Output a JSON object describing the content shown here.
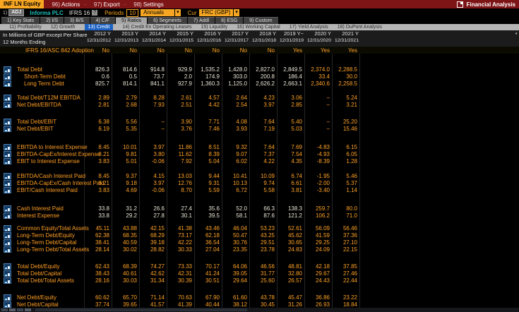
{
  "titlebar": {
    "security": "INF LN Equity",
    "menus": [
      {
        "num": "96)",
        "label": "Actions"
      },
      {
        "num": "97)",
        "label": "Export"
      },
      {
        "num": "98)",
        "label": "Settings"
      }
    ],
    "app_title": "Financial Analysis"
  },
  "toolbar": {
    "adj_num": "1)",
    "adj_label": "ADJ",
    "company": "Informa PLC",
    "standard": "IFRS 16",
    "help_badge": "?",
    "periods_label": "Periods",
    "periods_value": "10",
    "periods_type": "Annuals",
    "cur_label": "Cur",
    "cur_value": "FRC (GBP)",
    "dropdown_caret": "▾"
  },
  "tabs": [
    {
      "num": "1)",
      "label": "Key Stats",
      "active": false
    },
    {
      "num": "2)",
      "label": "I/S",
      "active": false
    },
    {
      "num": "3)",
      "label": "B/S",
      "active": false
    },
    {
      "num": "4)",
      "label": "C/F",
      "active": false
    },
    {
      "num": "5)",
      "label": "Ratios",
      "active": true
    },
    {
      "num": "6)",
      "label": "Segments",
      "active": false
    },
    {
      "num": "7)",
      "label": "Addl",
      "active": false
    },
    {
      "num": "8)",
      "label": "ESG",
      "active": false
    },
    {
      "num": "9)",
      "label": "Custom",
      "active": false
    }
  ],
  "subtabs": [
    {
      "num": "11)",
      "label": "Profitability",
      "active": false
    },
    {
      "num": "12)",
      "label": "Growth",
      "active": false
    },
    {
      "num": "13)",
      "label": "Credit",
      "active": true
    },
    {
      "num": "14)",
      "label": "Credit Ex Operating Leases",
      "active": false
    },
    {
      "num": "15)",
      "label": "Liquidity",
      "active": false
    },
    {
      "num": "16)",
      "label": "Working Capital",
      "active": false
    },
    {
      "num": "17)",
      "label": "Yield Analysis",
      "active": false
    },
    {
      "num": "18)",
      "label": "DuPont Analysis",
      "active": false
    }
  ],
  "table": {
    "unit_note": "In Millions of GBP except Per Share",
    "period_note": "12 Months Ending",
    "columns": [
      {
        "year": "2012 Y",
        "date": "12/31/2012"
      },
      {
        "year": "2013 Y",
        "date": "12/31/2013"
      },
      {
        "year": "2014 Y",
        "date": "12/31/2014"
      },
      {
        "year": "2015 Y",
        "date": "12/31/2015"
      },
      {
        "year": "2016 Y",
        "date": "12/31/2016"
      },
      {
        "year": "2017 Y",
        "date": "12/31/2017"
      },
      {
        "year": "2018 Y",
        "date": "12/31/2018"
      },
      {
        "year": "2019 Y~",
        "date": "12/31/2019"
      },
      {
        "year": "2020 Y",
        "date": "12/31/2020"
      },
      {
        "year": "2021 Y",
        "date": "12/31/2021"
      }
    ],
    "adoption_row": {
      "label": "IFRS 16/ASC 842 Adoption",
      "values": [
        "No",
        "No",
        "No",
        "No",
        "No",
        "No",
        "No",
        "Yes",
        "Yes",
        "Yes"
      ]
    },
    "sections": [
      {
        "rows": [
          {
            "label": "Total Debt",
            "indent": 0,
            "tone": "white",
            "amber_from": 8,
            "values": [
              "826.3",
              "814.6",
              "914.8",
              "929.9",
              "1,535.2",
              "1,428.0",
              "2,827.0",
              "2,849.5",
              "2,374.0",
              "2,288.5"
            ]
          },
          {
            "label": "Short-Term Debt",
            "indent": 1,
            "tone": "white",
            "amber_from": 8,
            "values": [
              "0.6",
              "0.5",
              "73.7",
              "2.0",
              "174.9",
              "303.0",
              "200.8",
              "186.4",
              "33.4",
              "30.0"
            ]
          },
          {
            "label": "Long Term Debt",
            "indent": 1,
            "tone": "white",
            "amber_from": 8,
            "values": [
              "825.7",
              "814.1",
              "841.1",
              "927.9",
              "1,360.3",
              "1,125.0",
              "2,626.2",
              "2,663.1",
              "2,340.6",
              "2,258.5"
            ]
          }
        ]
      },
      {
        "rows": [
          {
            "label": "Total Debt/T12M EBITDA",
            "indent": 0,
            "tone": "amber",
            "amber_from": 0,
            "values": [
              "2.89",
              "2.79",
              "8.28",
              "2.61",
              "4.57",
              "2.64",
              "4.23",
              "3.06",
              "–",
              "5.24"
            ]
          },
          {
            "label": "Net Debt/EBITDA",
            "indent": 0,
            "tone": "amber",
            "amber_from": 0,
            "values": [
              "2.81",
              "2.68",
              "7.93",
              "2.51",
              "4.42",
              "2.54",
              "3.97",
              "2.85",
              "–",
              "3.21"
            ]
          }
        ]
      },
      {
        "rows": [
          {
            "label": "Total Debt/EBIT",
            "indent": 0,
            "tone": "amber",
            "amber_from": 0,
            "values": [
              "6.38",
              "5.56",
              "–",
              "3.90",
              "7.71",
              "4.08",
              "7.64",
              "5.40",
              "–",
              "25.20"
            ]
          },
          {
            "label": "Net Debt/EBIT",
            "indent": 0,
            "tone": "amber",
            "amber_from": 0,
            "values": [
              "6.19",
              "5.35",
              "–",
              "3.76",
              "7.46",
              "3.93",
              "7.19",
              "5.03",
              "–",
              "15.46"
            ]
          }
        ]
      },
      {
        "rows": [
          {
            "label": "EBITDA to Interest Expense",
            "indent": 0,
            "tone": "amber",
            "amber_from": 0,
            "values": [
              "8.45",
              "10.01",
              "3.97",
              "11.86",
              "8.51",
              "9.32",
              "7.64",
              "7.69",
              "-4.83",
              "6.15"
            ]
          },
          {
            "label": "EBITDA-CapEx/Interest Expense",
            "indent": 0,
            "tone": "amber",
            "amber_from": 0,
            "values": [
              "8.21",
              "9.81",
              "3.80",
              "11.62",
              "8.39",
              "9.07",
              "7.37",
              "7.54",
              "-4.93",
              "6.05"
            ]
          },
          {
            "label": "EBIT to Interest Expense",
            "indent": 0,
            "tone": "amber",
            "amber_from": 0,
            "values": [
              "3.83",
              "5.01",
              "-0.06",
              "7.92",
              "5.04",
              "6.02",
              "4.22",
              "4.35",
              "-8.39",
              "1.28"
            ]
          }
        ]
      },
      {
        "rows": [
          {
            "label": "EBITDA/Cash Interest Paid",
            "indent": 0,
            "tone": "amber",
            "amber_from": 0,
            "values": [
              "8.45",
              "9.37",
              "4.15",
              "13.03",
              "9.44",
              "10.41",
              "10.09",
              "6.74",
              "-1.95",
              "5.46"
            ]
          },
          {
            "label": "EBITDA-CapEx/Cash Interest Paid",
            "indent": 0,
            "tone": "amber",
            "amber_from": 0,
            "values": [
              "8.21",
              "9.18",
              "3.97",
              "12.76",
              "9.31",
              "10.13",
              "9.74",
              "6.61",
              "-2.00",
              "5.37"
            ]
          },
          {
            "label": "EBIT/Cash Interest Paid",
            "indent": 0,
            "tone": "amber",
            "amber_from": 0,
            "values": [
              "3.83",
              "4.69",
              "-0.06",
              "8.70",
              "5.59",
              "6.72",
              "5.58",
              "3.81",
              "-3.40",
              "1.14"
            ]
          }
        ]
      },
      {
        "rows": [
          {
            "label": "Cash Interest Paid",
            "indent": 0,
            "tone": "white",
            "amber_from": 8,
            "values": [
              "33.8",
              "31.2",
              "26.6",
              "27.4",
              "35.6",
              "52.0",
              "66.3",
              "138.3",
              "259.7",
              "80.0"
            ]
          },
          {
            "label": "Interest Expense",
            "indent": 0,
            "tone": "white",
            "amber_from": 8,
            "values": [
              "33.8",
              "29.2",
              "27.8",
              "30.1",
              "39.5",
              "58.1",
              "87.6",
              "121.2",
              "106.2",
              "71.0"
            ]
          }
        ]
      },
      {
        "rows": [
          {
            "label": "Common Equity/Total Assets",
            "indent": 0,
            "tone": "amber",
            "amber_from": 0,
            "values": [
              "45.11",
              "43.88",
              "42.15",
              "41.38",
              "43.46",
              "46.04",
              "53.23",
              "52.61",
              "56.09",
              "56.46"
            ]
          },
          {
            "label": "Long-Term Debt/Equity",
            "indent": 0,
            "tone": "amber",
            "amber_from": 0,
            "values": [
              "62.38",
              "68.35",
              "68.29",
              "73.17",
              "62.18",
              "50.47",
              "43.25",
              "45.62",
              "41.59",
              "37.36"
            ]
          },
          {
            "label": "Long-Term Debt/Capital",
            "indent": 0,
            "tone": "amber",
            "amber_from": 0,
            "values": [
              "38.41",
              "40.59",
              "39.18",
              "42.22",
              "36.54",
              "30.76",
              "29.51",
              "30.65",
              "29.25",
              "27.10"
            ]
          },
          {
            "label": "Long-Term Debt/Total Assets",
            "indent": 0,
            "tone": "amber",
            "amber_from": 0,
            "values": [
              "28.14",
              "30.02",
              "28.82",
              "30.33",
              "27.04",
              "23.35",
              "23.78",
              "24.83",
              "24.09",
              "22.15"
            ]
          }
        ]
      },
      {
        "rows": [
          {
            "label": "Total Debt/Equity",
            "indent": 0,
            "tone": "amber",
            "amber_from": 0,
            "values": [
              "62.43",
              "68.39",
              "74.27",
              "73.33",
              "70.17",
              "64.06",
              "46.56",
              "48.81",
              "42.18",
              "37.85"
            ]
          },
          {
            "label": "Total Debt/Capital",
            "indent": 0,
            "tone": "amber",
            "amber_from": 0,
            "values": [
              "38.43",
              "40.61",
              "42.62",
              "42.31",
              "41.24",
              "39.05",
              "31.77",
              "32.80",
              "29.67",
              "27.46"
            ]
          },
          {
            "label": "Total Debt/Total Assets",
            "indent": 0,
            "tone": "amber",
            "amber_from": 0,
            "values": [
              "28.16",
              "30.03",
              "31.34",
              "30.39",
              "30.51",
              "29.64",
              "25.60",
              "26.57",
              "24.43",
              "22.44"
            ]
          }
        ]
      },
      {
        "rows": [
          {
            "label": "Net Debt/Equity",
            "indent": 0,
            "tone": "amber",
            "amber_from": 0,
            "values": [
              "60.62",
              "65.70",
              "71.14",
              "70.63",
              "67.90",
              "61.60",
              "43.78",
              "45.47",
              "36.86",
              "23.22"
            ]
          },
          {
            "label": "Net Debt/Capital",
            "indent": 0,
            "tone": "amber",
            "amber_from": 0,
            "values": [
              "37.74",
              "39.65",
              "41.57",
              "41.39",
              "40.44",
              "38.12",
              "30.45",
              "31.26",
              "26.93",
              "18.84"
            ]
          }
        ]
      }
    ]
  },
  "colors": {
    "titlebar_red": "#7d1416",
    "amber_accent": "#f6a623",
    "company_teal": "#1fbdb8",
    "active_subtab_blue": "#1e63c4",
    "row_label_orange": "#ff9e24",
    "value_white": "#e9e4d4",
    "value_amber": "#ffa226"
  }
}
